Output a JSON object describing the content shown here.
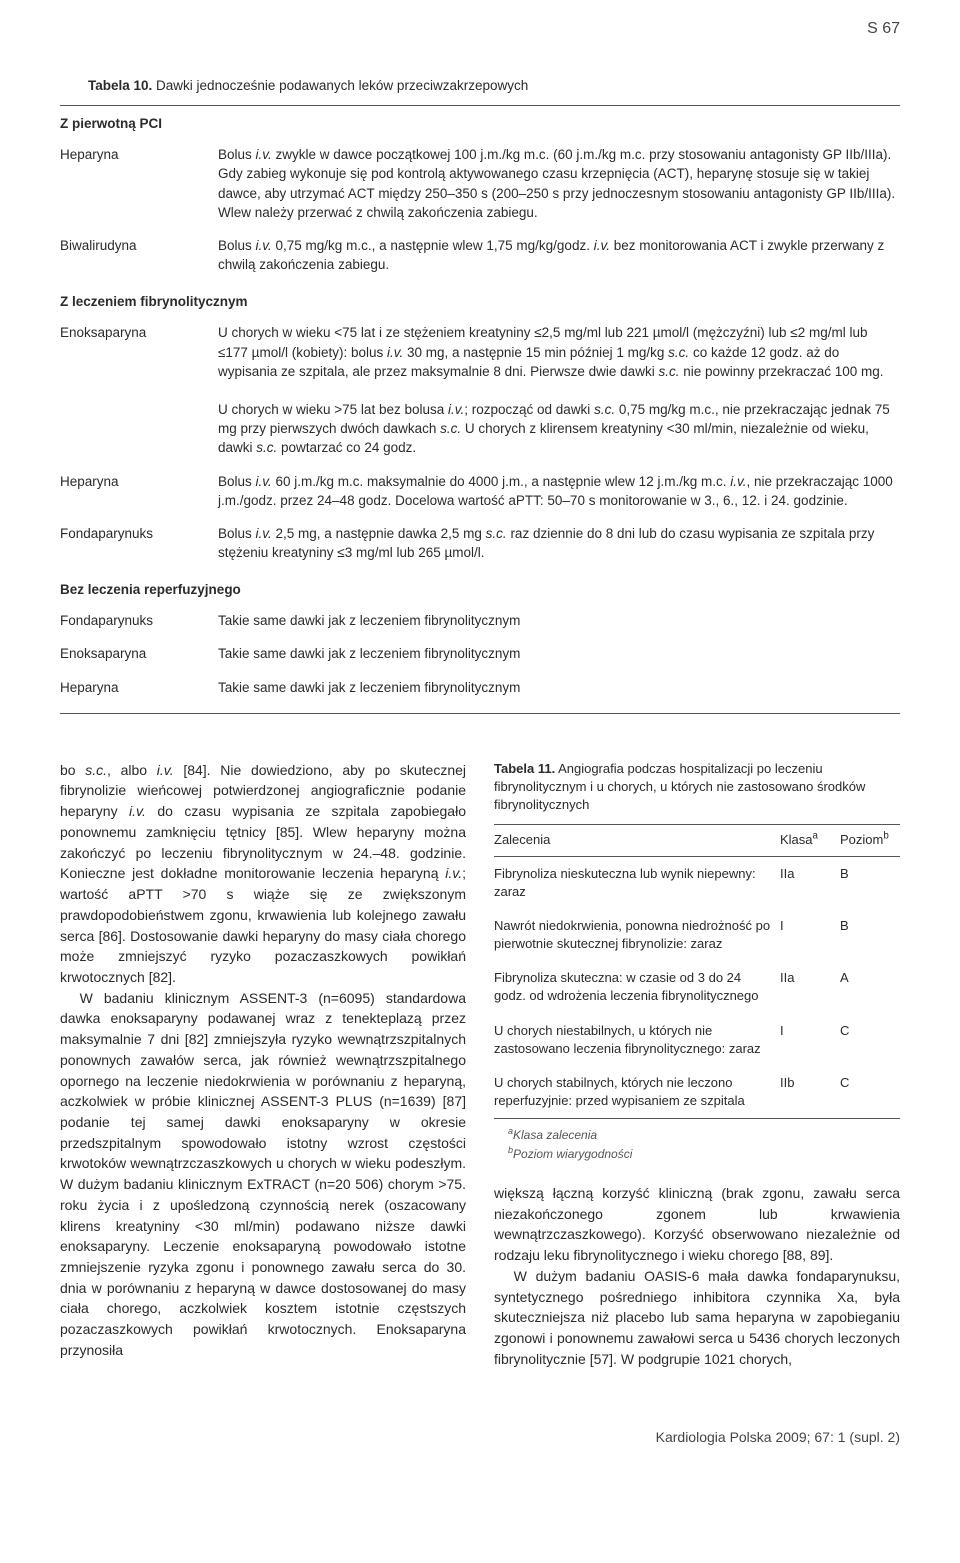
{
  "page_number": "S 67",
  "table10": {
    "title_label": "Tabela 10.",
    "title_rest": " Dawki jednocześnie podawanych leków przeciwzakrzepowych",
    "sections": [
      {
        "heading": "Z pierwotną PCI",
        "rows": [
          {
            "label": "Heparyna",
            "value_html": "Bolus <i>i.v.</i> zwykle w dawce początkowej 100 j.m./kg m.c. (60 j.m./kg m.c. przy stosowaniu antagonisty GP IIb/IIIa). Gdy zabieg wykonuje się pod kontrolą aktywowanego czasu krzepnięcia (ACT), heparynę stosuje się w takiej dawce, aby utrzymać ACT między 250–350 s (200–250 s przy jednoczesnym stosowaniu antagonisty GP IIb/IIIa). Wlew należy przerwać z chwilą zakończenia zabiegu."
          },
          {
            "label": "Biwalirudyna",
            "value_html": "Bolus <i>i.v.</i> 0,75 mg/kg m.c., a następnie wlew 1,75 mg/kg/godz. <i>i.v.</i> bez monitorowania ACT i zwykle przerwany z chwilą zakończenia zabiegu."
          }
        ]
      },
      {
        "heading": "Z leczeniem fibrynolitycznym",
        "rows": [
          {
            "label": "Enoksaparyna",
            "value_html": "U chorych w wieku <75 lat i ze stężeniem kreatyniny ≤2,5 mg/ml lub 221 µmol/l (mężczyźni) lub ≤2 mg/ml lub ≤177 µmol/l (kobiety): bolus <i>i.v.</i> 30 mg, a następnie 15 min później 1 mg/kg <i>s.c.</i> co każde 12 godz. aż do wypisania ze szpitala, ale przez maksymalnie 8 dni. Pierwsze dwie dawki <i>s.c.</i> nie powinny przekraczać 100 mg.<br><br>U chorych w wieku >75 lat bez bolusa <i>i.v.</i>; rozpocząć od dawki <i>s.c.</i> 0,75 mg/kg m.c., nie przekraczając jednak 75 mg przy pierwszych dwóch dawkach <i>s.c.</i> U chorych z klirensem kreatyniny <30 ml/min, niezależnie od wieku, dawki <i>s.c.</i> powtarzać co 24 godz."
          },
          {
            "label": "Heparyna",
            "value_html": "Bolus <i>i.v.</i> 60 j.m./kg m.c. maksymalnie do 4000 j.m., a następnie wlew 12 j.m./kg m.c. <i>i.v.</i>, nie przekraczając 1000 j.m./godz. przez 24–48 godz. Docelowa wartość aPTT: 50–70 s monitorowanie w 3., 6., 12. i 24. godzinie."
          },
          {
            "label": "Fondaparynuks",
            "value_html": "Bolus <i>i.v.</i> 2,5 mg, a następnie dawka 2,5 mg <i>s.c.</i> raz dziennie do 8 dni lub do czasu wypisania ze szpitala przy stężeniu kreatyniny ≤3 mg/ml lub 265 µmol/l."
          }
        ]
      },
      {
        "heading": "Bez leczenia reperfuzyjnego",
        "rows": [
          {
            "label": "Fondaparynuks",
            "value_html": "Takie same dawki jak z leczeniem fibrynolitycznym"
          },
          {
            "label": "Enoksaparyna",
            "value_html": "Takie same dawki jak z leczeniem fibrynolitycznym"
          },
          {
            "label": "Heparyna",
            "value_html": "Takie same dawki jak z leczeniem fibrynolitycznym"
          }
        ]
      }
    ]
  },
  "body_left": [
    "bo <i>s.c.</i>, albo <i>i.v.</i> [84]. Nie dowiedziono, aby po skutecznej fibrynolizie wieńcowej potwierdzonej angiograficznie podanie heparyny <i>i.v.</i> do czasu wypisania ze szpitala zapobiegało ponownemu zamknięciu tętnicy [85]. Wlew heparyny można zakończyć po leczeniu fibrynolitycznym w 24.–48. godzinie. Konieczne jest dokładne monitorowanie leczenia heparyną <i>i.v.</i>; wartość aPTT >70 s wiąże się ze zwiększonym prawdopodobieństwem zgonu, krwawienia lub kolejnego zawału serca [86]. Dostosowanie dawki heparyny do masy ciała chorego może zmniejszyć ryzyko pozaczaszkowych powikłań krwotocznych [82].",
    "W badaniu klinicznym ASSENT-3 (n=6095) standardowa dawka enoksaparyny podawanej wraz z tenekteplazą przez maksymalnie 7 dni [82] zmniejszyła ryzyko wewnątrzszpitalnych ponownych zawałów serca, jak również wewnątrzszpitalnego opornego na leczenie niedokrwienia w porównaniu z heparyną, aczkolwiek w próbie klinicznej ASSENT-3 PLUS (n=1639) [87] podanie tej samej dawki enoksaparyny w okresie przedszpitalnym spowodowało istotny wzrost częstości krwotoków wewnątrzczaszkowych u chorych w wieku podeszłym. W dużym badaniu klinicznym ExTRACT (n=20 506) chorym >75. roku życia i z upośledzoną czynnością nerek (oszacowany klirens kreatyniny <30 ml/min) podawano niższe dawki enoksaparyny. Leczenie enoksaparyną powodowało istotne zmniejszenie ryzyka zgonu i ponownego zawału serca do 30. dnia w porównaniu z heparyną w dawce dostosowanej do masy ciała chorego, aczkolwiek kosztem istotnie częstszych pozaczaszkowych powikłań krwotocznych. Enoksaparyna przynosiła"
  ],
  "table11": {
    "title_label": "Tabela 11.",
    "title_rest": " Angiografia podczas hospitalizacji po leczeniu fibrynolitycznym i u chorych, u których nie zastosowano środków fibrynolitycznych",
    "headers": {
      "c1": "Zalecenia",
      "c2_html": "Klasa<sup>a</sup>",
      "c3_html": "Poziom<sup>b</sup>"
    },
    "rows": [
      {
        "c1": "Fibrynoliza nieskuteczna lub wynik niepewny: zaraz",
        "c2": "IIa",
        "c3": "B"
      },
      {
        "c1": "Nawrót niedokrwienia, ponowna niedrożność po pierwotnie skutecznej fibrynolizie: zaraz",
        "c2": "I",
        "c3": "B"
      },
      {
        "c1": "Fibrynoliza skuteczna: w czasie od 3 do 24 godz. od wdrożenia leczenia fibrynolitycznego",
        "c2": "IIa",
        "c3": "A"
      },
      {
        "c1": "U chorych niestabilnych, u których nie zastosowano leczenia fibrynolitycznego: zaraz",
        "c2": "I",
        "c3": "C"
      },
      {
        "c1": "U chorych stabilnych, których nie leczono reperfuzyjnie: przed wypisaniem ze szpitala",
        "c2": "IIb",
        "c3": "C"
      }
    ],
    "notes": [
      {
        "sup": "a",
        "text": "Klasa zalecenia"
      },
      {
        "sup": "b",
        "text": "Poziom wiarygodności"
      }
    ]
  },
  "body_right_after": [
    "większą łączną korzyść kliniczną (brak zgonu, zawału serca niezakończonego zgonem lub krwawienia wewnątrzczaszkowego). Korzyść obserwowano niezależnie od rodzaju leku fibrynolitycznego i wieku chorego [88, 89].",
    "W dużym badaniu OASIS-6 mała dawka fondaparynuksu, syntetycznego pośredniego inhibitora czynnika Xa, była skuteczniejsza niż placebo lub sama heparyna w zapobieganiu zgonowi i ponownemu zawałowi serca u 5436 chorych leczonych fibrynolitycznie [57]. W podgrupie 1021 chorych,"
  ],
  "footer": "Kardiologia Polska 2009; 67: 1 (supl. 2)"
}
